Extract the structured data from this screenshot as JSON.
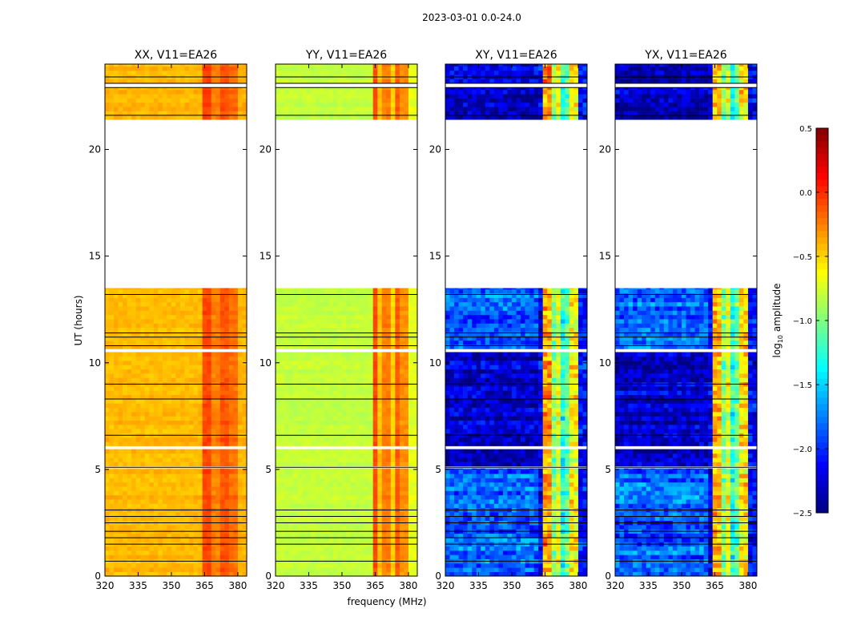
{
  "chart_data": {
    "type": "heatmap",
    "suptitle": "2023-03-01 0.0-24.0",
    "xlabel": "frequency (MHz)",
    "ylabel": "UT (hours)",
    "xlim": [
      320,
      384
    ],
    "ylim": [
      0,
      24
    ],
    "xticks": [
      "320",
      "335",
      "350",
      "365",
      "380"
    ],
    "yticks": [
      "0",
      "5",
      "10",
      "15",
      "20"
    ],
    "colorbar": {
      "label": "log10 amplitude",
      "label_main": "log",
      "label_sub": "10",
      "label_rest": " amplitude",
      "range": [
        -2.5,
        0.5
      ],
      "ticks": [
        "0.5",
        "0.0",
        "−0.5",
        "−1.0",
        "−1.5",
        "−2.0",
        "−2.5"
      ],
      "tick_values": [
        0.5,
        0,
        -0.5,
        -1,
        -1.5,
        -2,
        -2.5
      ],
      "colormap": "jet"
    },
    "time_segments": [
      [
        0,
        5.05
      ],
      [
        5.15,
        5.95
      ],
      [
        6.1,
        10.5
      ],
      [
        10.65,
        13.5
      ],
      [
        21.4,
        22.9
      ],
      [
        23.1,
        24
      ]
    ],
    "flag_lines_hours": [
      0.7,
      1.5,
      1.8,
      2.1,
      2.5,
      2.8,
      3.1,
      5.1,
      6.6,
      8.3,
      9.0,
      10.8,
      11.2,
      11.4,
      13.2,
      21.6,
      22.9,
      23.1,
      23.4
    ],
    "panels": [
      {
        "title": "XX, V11=EA26",
        "base": -0.42,
        "noisy_base": -0.42,
        "noise": 0.07,
        "bands": [
          [
            363,
            368,
            -0.08
          ],
          [
            368,
            372,
            -0.25
          ],
          [
            372,
            376,
            -0.12
          ],
          [
            376,
            380,
            -0.2
          ],
          [
            380,
            384,
            -0.4
          ]
        ]
      },
      {
        "title": "YY, V11=EA26",
        "base": -0.8,
        "noisy_base": -0.8,
        "noise": 0.06,
        "bands": [
          [
            363,
            366,
            -0.1
          ],
          [
            366,
            368,
            -0.45
          ],
          [
            368,
            371,
            -0.25
          ],
          [
            371,
            373,
            -0.5
          ],
          [
            373,
            376,
            -0.15
          ],
          [
            376,
            380,
            -0.3
          ],
          [
            380,
            384,
            -0.7
          ]
        ]
      },
      {
        "title": "XY, V11=EA26",
        "base": -2.3,
        "noisy_base": -1.85,
        "noise": 0.3,
        "bands": [
          [
            361,
            364,
            -2.2
          ],
          [
            364,
            368,
            -0.35
          ],
          [
            368,
            370,
            -1.0
          ],
          [
            370,
            372,
            -0.7
          ],
          [
            372,
            374,
            -1.3
          ],
          [
            374,
            376,
            -1.1
          ],
          [
            376,
            380,
            -0.6
          ],
          [
            380,
            384,
            -2.1
          ]
        ]
      },
      {
        "title": "YX, V11=EA26",
        "base": -2.3,
        "noisy_base": -1.85,
        "noise": 0.3,
        "bands": [
          [
            361,
            364,
            -2.2
          ],
          [
            364,
            368,
            -0.4
          ],
          [
            368,
            370,
            -1.0
          ],
          [
            370,
            372,
            -0.7
          ],
          [
            372,
            374,
            -1.3
          ],
          [
            374,
            376,
            -1.1
          ],
          [
            376,
            380,
            -0.55
          ],
          [
            380,
            384,
            -2.1
          ]
        ]
      }
    ]
  }
}
